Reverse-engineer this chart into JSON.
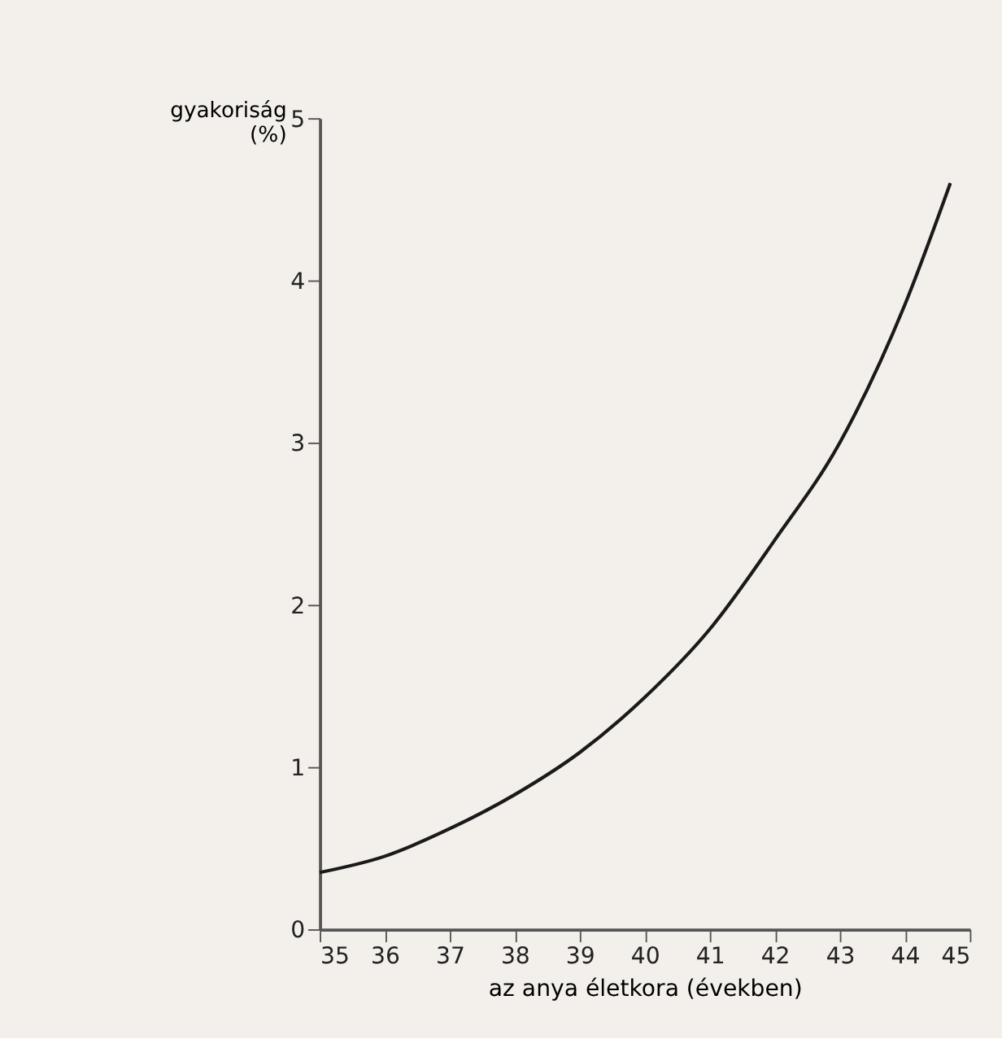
{
  "chart_data": {
    "type": "line",
    "xlabel": "az anya életkora (években)",
    "ylabel": "gyakoriság\n(%)",
    "x": [
      35,
      36,
      37,
      38,
      39,
      40,
      41,
      42,
      43,
      44,
      44.7
    ],
    "series": [
      {
        "color": "#1a1a1a",
        "values": [
          0.35,
          0.45,
          0.62,
          0.83,
          1.09,
          1.43,
          1.85,
          2.4,
          3.0,
          3.85,
          4.6
        ]
      }
    ],
    "xlim": [
      35,
      45
    ],
    "xticks": [
      35,
      36,
      37,
      38,
      39,
      40,
      41,
      42,
      43,
      44,
      45
    ],
    "ylim": [
      0,
      5
    ],
    "yticks": [
      0,
      1,
      2,
      3,
      4,
      5
    ],
    "grid": false,
    "legend": false,
    "marker": "none",
    "line_style": "solid"
  }
}
